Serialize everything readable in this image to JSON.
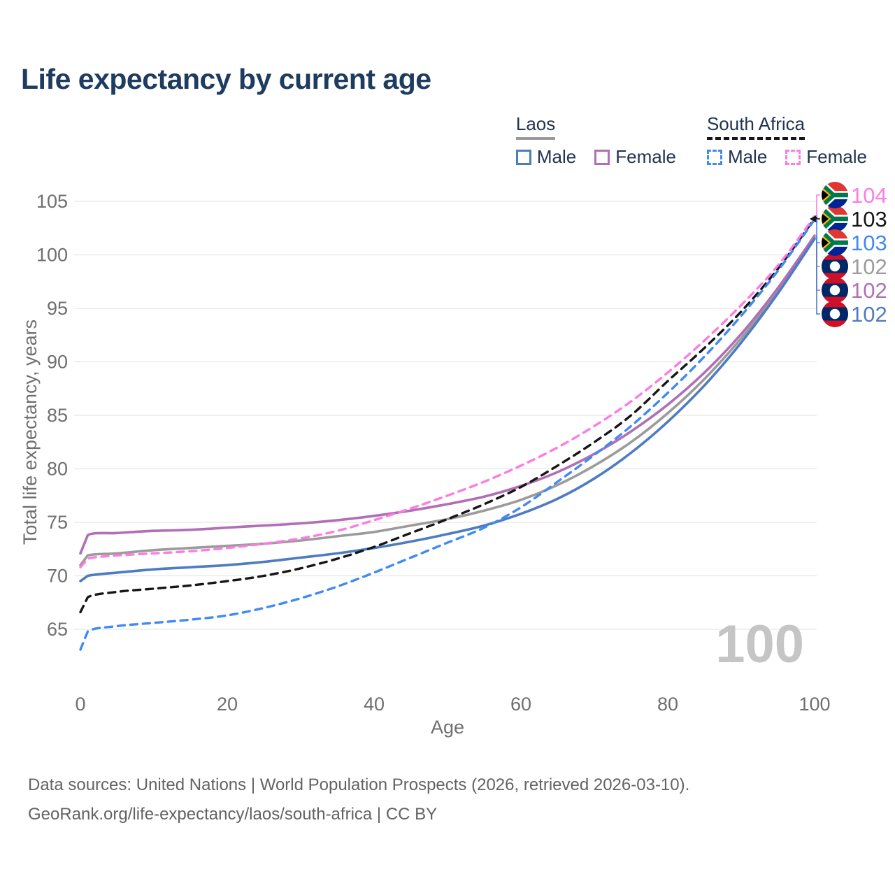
{
  "title": "Life expectancy by current age",
  "legend": {
    "groups": [
      {
        "id": "laos",
        "label": "Laos",
        "underline_style": "solid",
        "underline_color": "#9a9a9a",
        "items": [
          {
            "label": "Male",
            "color": "#4d7cc1",
            "dashed": false
          },
          {
            "label": "Female",
            "color": "#b06fb6",
            "dashed": false
          }
        ]
      },
      {
        "id": "south-africa",
        "label": "South Africa",
        "underline_style": "dashed",
        "underline_color": "#161616",
        "items": [
          {
            "label": "Male",
            "color": "#3f8af3",
            "dashed": true
          },
          {
            "label": "Female",
            "color": "#fc7ce2",
            "dashed": true
          }
        ]
      }
    ]
  },
  "chart_data": {
    "type": "line",
    "title": "Life expectancy by current age",
    "xlabel": "Age",
    "ylabel": "Total life expectancy, years",
    "xlim": [
      0,
      100
    ],
    "ylim": [
      62.5,
      106.5
    ],
    "xticks": [
      0,
      20,
      40,
      60,
      80,
      100
    ],
    "yticks": [
      65,
      70,
      75,
      80,
      85,
      90,
      95,
      100,
      105
    ],
    "grid": "horizontal",
    "legend_position": "top-right",
    "current_age_watermark": "100",
    "x": [
      0,
      1,
      5,
      10,
      15,
      20,
      25,
      30,
      35,
      40,
      45,
      50,
      55,
      60,
      65,
      70,
      75,
      80,
      85,
      90,
      95,
      100
    ],
    "series": [
      {
        "id": "laos-total",
        "name": "Laos — Total",
        "country": "Laos",
        "sex": "Total",
        "color": "#9b9b9b",
        "dashed": false,
        "flag": "la",
        "values": [
          71.0,
          71.9,
          72.1,
          72.4,
          72.6,
          72.8,
          73.0,
          73.3,
          73.7,
          74.1,
          74.7,
          75.3,
          76.1,
          77.1,
          78.5,
          80.3,
          82.5,
          85.2,
          88.4,
          92.2,
          96.6,
          101.6
        ],
        "end": {
          "label": "102",
          "row": 3,
          "flag": "la",
          "arrow": false
        }
      },
      {
        "id": "laos-female",
        "name": "Laos — Female",
        "country": "Laos",
        "sex": "Female",
        "color": "#b06fb6",
        "dashed": false,
        "flag": "la",
        "values": [
          72.1,
          73.8,
          74.0,
          74.2,
          74.3,
          74.5,
          74.7,
          74.9,
          75.2,
          75.6,
          76.1,
          76.7,
          77.4,
          78.4,
          79.7,
          81.4,
          83.5,
          86.0,
          89.0,
          92.6,
          96.9,
          101.8
        ],
        "end": {
          "label": "102",
          "row": 4,
          "flag": "la",
          "arrow": false
        }
      },
      {
        "id": "laos-male",
        "name": "Laos — Male",
        "country": "Laos",
        "sex": "Male",
        "color": "#4d7cc1",
        "dashed": false,
        "flag": "la",
        "values": [
          69.5,
          70.0,
          70.3,
          70.6,
          70.8,
          71.0,
          71.3,
          71.7,
          72.1,
          72.6,
          73.2,
          73.9,
          74.7,
          75.8,
          77.2,
          79.1,
          81.5,
          84.4,
          87.8,
          91.8,
          96.4,
          101.5
        ],
        "end": {
          "label": "102",
          "row": 5,
          "flag": "la",
          "arrow": false
        }
      },
      {
        "id": "south-africa-total",
        "name": "South Africa — Total",
        "country": "South Africa",
        "sex": "Total",
        "color": "#161616",
        "dashed": true,
        "flag": "za",
        "values": [
          66.6,
          68.0,
          68.5,
          68.8,
          69.1,
          69.5,
          70.0,
          70.7,
          71.6,
          72.7,
          74.0,
          75.3,
          76.7,
          78.3,
          80.3,
          82.5,
          85.0,
          88.2,
          91.3,
          94.7,
          98.7,
          103.4
        ],
        "end": {
          "label": "103",
          "row": 1,
          "flag": "za",
          "arrow": true
        }
      },
      {
        "id": "south-africa-male",
        "name": "South Africa — Male",
        "country": "South Africa",
        "sex": "Male",
        "color": "#3f8af3",
        "dashed": true,
        "flag": "za",
        "values": [
          63.1,
          64.8,
          65.3,
          65.6,
          65.9,
          66.3,
          67.0,
          67.9,
          69.0,
          70.3,
          71.7,
          73.1,
          74.5,
          76.4,
          78.8,
          81.3,
          84.0,
          87.1,
          90.5,
          94.3,
          98.5,
          103.3
        ],
        "end": {
          "label": "103",
          "row": 2,
          "flag": "za",
          "arrow": false
        }
      },
      {
        "id": "south-africa-female",
        "name": "South Africa — Female",
        "country": "South Africa",
        "sex": "Female",
        "color": "#fc7ce2",
        "dashed": true,
        "flag": "za",
        "values": [
          70.8,
          71.6,
          71.9,
          72.1,
          72.3,
          72.6,
          73.0,
          73.5,
          74.2,
          75.2,
          76.3,
          77.5,
          78.8,
          80.3,
          82.0,
          84.0,
          86.3,
          89.0,
          92.0,
          95.3,
          99.0,
          103.6
        ],
        "end": {
          "label": "104",
          "row": 0,
          "flag": "za",
          "arrow": false
        }
      }
    ]
  },
  "footer": {
    "line1": "Data sources: United Nations | World Population Prospects (2026, retrieved 2026-03-10).",
    "line2": "GeoRank.org/life-expectancy/laos/south-africa | CC BY"
  }
}
